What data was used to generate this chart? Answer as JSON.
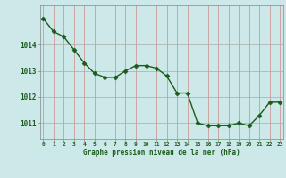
{
  "x": [
    0,
    1,
    2,
    3,
    4,
    5,
    6,
    7,
    8,
    9,
    10,
    11,
    12,
    13,
    14,
    15,
    16,
    17,
    18,
    19,
    20,
    21,
    22,
    23
  ],
  "y": [
    1015.0,
    1014.5,
    1014.3,
    1013.8,
    1013.3,
    1012.9,
    1012.75,
    1012.75,
    1013.0,
    1013.2,
    1013.2,
    1013.1,
    1012.8,
    1012.15,
    1012.15,
    1011.0,
    1010.9,
    1010.9,
    1010.9,
    1011.0,
    1010.9,
    1011.3,
    1011.8,
    1011.8
  ],
  "bg_color": "#cce8e8",
  "line_color": "#1a5c1a",
  "marker_color": "#1a5c1a",
  "grid_color_major": "#aaaaaa",
  "grid_color_minor": "#cccccc",
  "xlabel": "Graphe pression niveau de la mer (hPa)",
  "xlabel_color": "#1a5c1a",
  "tick_label_color": "#1a5c1a",
  "ylim": [
    1010.4,
    1015.5
  ],
  "yticks": [
    1011,
    1012,
    1013,
    1014
  ],
  "xticks": [
    0,
    1,
    2,
    3,
    4,
    5,
    6,
    7,
    8,
    9,
    10,
    11,
    12,
    13,
    14,
    15,
    16,
    17,
    18,
    19,
    20,
    21,
    22,
    23
  ]
}
